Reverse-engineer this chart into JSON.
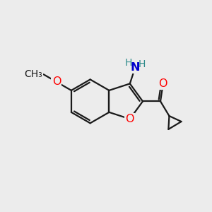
{
  "bg_color": "#ececec",
  "bond_color": "#1a1a1a",
  "bond_width": 1.6,
  "atom_colors": {
    "O": "#ff0000",
    "N": "#0000cd",
    "H": "#2e8b8b",
    "C": "#1a1a1a"
  },
  "font_size_atom": 11.5,
  "font_size_H": 10,
  "font_size_small": 9.5,
  "canvas_xlim": [
    0,
    10
  ],
  "canvas_ylim": [
    0,
    10
  ]
}
